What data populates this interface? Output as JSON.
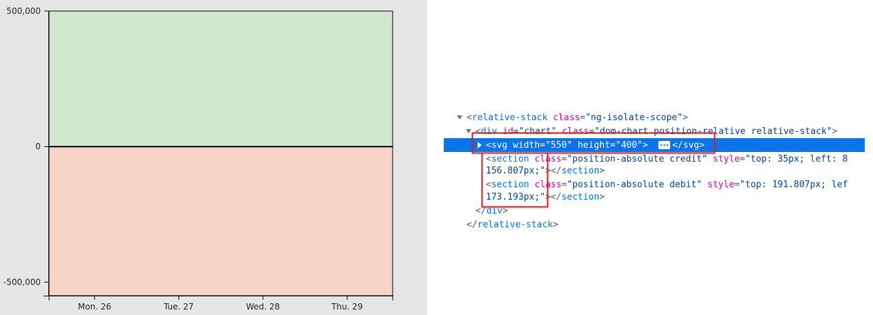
{
  "chart_data": {
    "type": "area-bands",
    "categories": [
      "Mon. 26",
      "Tue. 27",
      "Wed. 28",
      "Thu. 29"
    ],
    "ylim": [
      -550000,
      500000
    ],
    "yticks": [
      {
        "value": 500000,
        "label": "500,000"
      },
      0,
      {
        "value": -500000,
        "label": "-500,000"
      }
    ],
    "colors": {
      "positive": "#cfe8cf",
      "negative": "#f8d3c8"
    }
  },
  "devtools": {
    "lines": [
      "<relative-stack class=\"ng-isolate-scope\">",
      "<div id=\"chart\" class=\"dom-chart position-relative relative-stack\">",
      "<svg width=\"550\" height=\"400\">",
      "</svg>",
      "<section class=\"position-absolute credit\" style=\"top: 35px; left: 8",
      "156.807px;\"></section>",
      "<section class=\"position-absolute debit\" style=\"top: 191.807px; lef",
      "173.193px;\"></section>",
      "</div>",
      "</relative-stack>"
    ]
  }
}
